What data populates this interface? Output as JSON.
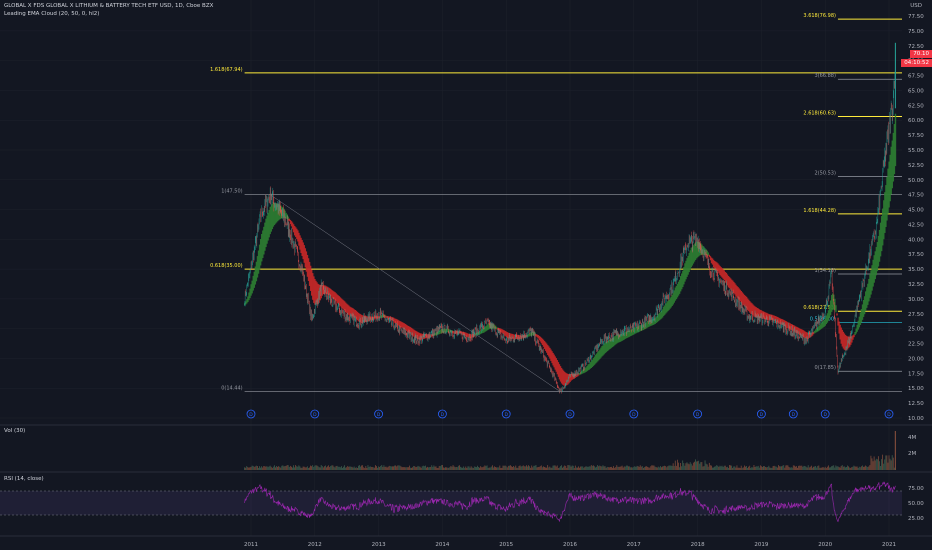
{
  "header": {
    "symbol_line": "GLOBAL X FDS GLOBAL X LITHIUM & BATTERY TECH ETF USD, 1D, Cboe BZX",
    "indicator_line": "Leading EMA Cloud (20, 50, 0, hl2)"
  },
  "price_axis": {
    "currency": "USD",
    "ticks": [
      "77.50",
      "75.00",
      "72.50",
      "70.00",
      "67.50",
      "65.00",
      "62.50",
      "60.00",
      "57.50",
      "55.00",
      "52.50",
      "50.00",
      "47.50",
      "45.00",
      "42.50",
      "40.00",
      "37.50",
      "35.00",
      "32.50",
      "30.00",
      "27.50",
      "25.00",
      "22.50",
      "20.00",
      "17.50",
      "15.00",
      "12.50",
      "10.00"
    ],
    "last_price_tag": "70.10",
    "countdown_tag": "04:10:52"
  },
  "time_axis": {
    "ticks": [
      "2011",
      "2012",
      "2013",
      "2014",
      "2015",
      "2016",
      "2017",
      "2018",
      "2019",
      "2020",
      "2021"
    ]
  },
  "panes": {
    "volume_label": "Vol (30)",
    "volume_ticks": [
      "4M",
      "2M"
    ],
    "rsi_label": "RSI (14, close)",
    "rsi_ticks": [
      "75.00",
      "50.00",
      "25.00"
    ]
  },
  "colors": {
    "background": "#131722",
    "candle_up": "#26a69a",
    "candle_down": "#ef5350",
    "cloud_up": "#2e7d32",
    "cloud_down": "#c62828",
    "fib_yellow": "#ffeb3b",
    "fib_gray": "#9598a1",
    "rsi_line": "#9c27b0",
    "dividend_marker": "#2962ff",
    "price_tag": "#f23645"
  },
  "chart_data": {
    "type": "candlestick",
    "ylim": [
      10,
      80
    ],
    "x_range": [
      "2010-06",
      "2021-03"
    ],
    "price_path": [
      {
        "x": 2010.9,
        "y": 30
      },
      {
        "x": 2011.05,
        "y": 38
      },
      {
        "x": 2011.15,
        "y": 44
      },
      {
        "x": 2011.3,
        "y": 47.5
      },
      {
        "x": 2011.55,
        "y": 43
      },
      {
        "x": 2011.8,
        "y": 35
      },
      {
        "x": 2011.95,
        "y": 26.5
      },
      {
        "x": 2012.1,
        "y": 32
      },
      {
        "x": 2012.3,
        "y": 29
      },
      {
        "x": 2012.5,
        "y": 27
      },
      {
        "x": 2012.7,
        "y": 26
      },
      {
        "x": 2013.0,
        "y": 27.5
      },
      {
        "x": 2013.3,
        "y": 25
      },
      {
        "x": 2013.6,
        "y": 23
      },
      {
        "x": 2014.0,
        "y": 25
      },
      {
        "x": 2014.4,
        "y": 23.5
      },
      {
        "x": 2014.7,
        "y": 26
      },
      {
        "x": 2015.0,
        "y": 23
      },
      {
        "x": 2015.4,
        "y": 24.5
      },
      {
        "x": 2015.7,
        "y": 18
      },
      {
        "x": 2015.85,
        "y": 14.4
      },
      {
        "x": 2016.0,
        "y": 17
      },
      {
        "x": 2016.2,
        "y": 18.5
      },
      {
        "x": 2016.5,
        "y": 23
      },
      {
        "x": 2016.8,
        "y": 24.5
      },
      {
        "x": 2017.0,
        "y": 25
      },
      {
        "x": 2017.3,
        "y": 27
      },
      {
        "x": 2017.6,
        "y": 32
      },
      {
        "x": 2017.85,
        "y": 39.5
      },
      {
        "x": 2018.0,
        "y": 40
      },
      {
        "x": 2018.2,
        "y": 35
      },
      {
        "x": 2018.5,
        "y": 31
      },
      {
        "x": 2018.8,
        "y": 27
      },
      {
        "x": 2019.1,
        "y": 26.5
      },
      {
        "x": 2019.4,
        "y": 25
      },
      {
        "x": 2019.7,
        "y": 23
      },
      {
        "x": 2020.0,
        "y": 28
      },
      {
        "x": 2020.1,
        "y": 34
      },
      {
        "x": 2020.2,
        "y": 17.8
      },
      {
        "x": 2020.4,
        "y": 24
      },
      {
        "x": 2020.6,
        "y": 33
      },
      {
        "x": 2020.8,
        "y": 42
      },
      {
        "x": 2020.95,
        "y": 55
      },
      {
        "x": 2021.05,
        "y": 62
      },
      {
        "x": 2021.1,
        "y": 70.1
      }
    ],
    "fib_levels": [
      {
        "label": "3.618(76.98)",
        "value": 76.98,
        "color": "yellow",
        "from": 2020.2
      },
      {
        "label": "1.618(67.94)",
        "value": 67.94,
        "color": "yellow",
        "from": 2010.9
      },
      {
        "label": "3(66.88)",
        "value": 66.88,
        "color": "gray",
        "from": 2020.2
      },
      {
        "label": "2.618(60.63)",
        "value": 60.63,
        "color": "yellow",
        "from": 2020.2
      },
      {
        "label": "2(50.53)",
        "value": 50.53,
        "color": "gray",
        "from": 2020.2
      },
      {
        "label": "1(47.50)",
        "value": 47.5,
        "color": "gray",
        "from": 2010.9
      },
      {
        "label": "1.618(44.28)",
        "value": 44.28,
        "color": "yellow",
        "from": 2020.2
      },
      {
        "label": "0.618(35.00)",
        "value": 35.0,
        "color": "yellow",
        "from": 2010.9
      },
      {
        "label": "1(34.18)",
        "value": 34.18,
        "color": "gray",
        "from": 2020.2
      },
      {
        "label": "0.618(27.93)",
        "value": 27.93,
        "color": "yellow",
        "from": 2020.2
      },
      {
        "label": "0.5(26.00)",
        "value": 26.0,
        "color": "blue",
        "from": 2020.2
      },
      {
        "label": "0(17.85)",
        "value": 17.85,
        "color": "gray",
        "from": 2020.2
      },
      {
        "label": "0(14.44)",
        "value": 14.44,
        "color": "gray",
        "from": 2010.9
      }
    ],
    "dividend_markers": [
      "2011",
      "2012",
      "2013",
      "2014",
      "2015",
      "2016",
      "2017",
      "2018",
      "2019",
      "2019.5",
      "2020",
      "2021"
    ]
  }
}
